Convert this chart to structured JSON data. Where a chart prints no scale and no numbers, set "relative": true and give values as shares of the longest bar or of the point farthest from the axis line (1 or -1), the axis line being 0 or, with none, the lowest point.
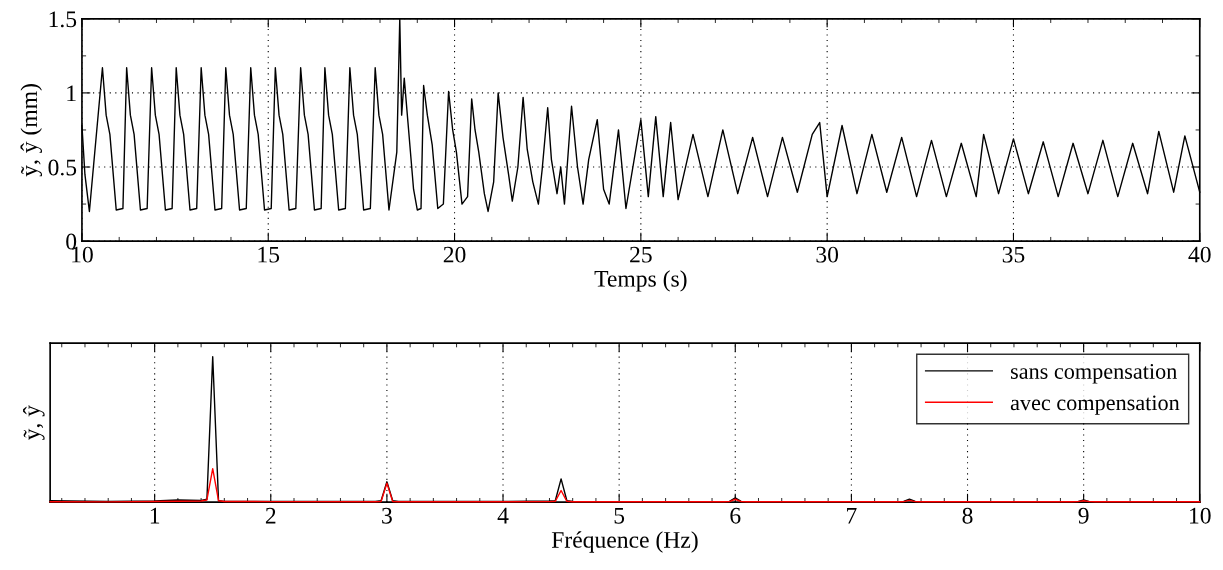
{
  "chart_data": [
    {
      "type": "line",
      "xlabel": "Temps (s)",
      "ylabel": "ỹ, ŷ (mm)",
      "xlim": [
        10,
        40
      ],
      "ylim": [
        0,
        1.5
      ],
      "grid": true,
      "legend": false,
      "xticks": [
        10,
        {
          "value": 11,
          "label": null
        },
        {
          "value": 12,
          "label": null
        },
        {
          "value": 13,
          "label": null
        },
        {
          "value": 14,
          "label": null
        },
        15,
        {
          "value": 16,
          "label": null
        },
        {
          "value": 17,
          "label": null
        },
        {
          "value": 18,
          "label": null
        },
        {
          "value": 19,
          "label": null
        },
        20,
        {
          "value": 21,
          "label": null
        },
        {
          "value": 22,
          "label": null
        },
        {
          "value": 23,
          "label": null
        },
        {
          "value": 24,
          "label": null
        },
        25,
        {
          "value": 26,
          "label": null
        },
        {
          "value": 27,
          "label": null
        },
        {
          "value": 28,
          "label": null
        },
        {
          "value": 29,
          "label": null
        },
        30,
        {
          "value": 31,
          "label": null
        },
        {
          "value": 32,
          "label": null
        },
        {
          "value": 33,
          "label": null
        },
        {
          "value": 34,
          "label": null
        },
        35,
        {
          "value": 36,
          "label": null
        },
        {
          "value": 37,
          "label": null
        },
        {
          "value": 38,
          "label": null
        },
        {
          "value": 39,
          "label": null
        },
        40
      ],
      "yticks": [
        0,
        {
          "value": 0.25,
          "label": null
        },
        0.5,
        {
          "value": 0.75,
          "label": null
        },
        1,
        {
          "value": 1.25,
          "label": null
        },
        1.5
      ],
      "series": [
        {
          "color": "#000000",
          "x": [
            10.0,
            10.08,
            10.2,
            10.55,
            10.65,
            10.75,
            10.92,
            11.1,
            11.2,
            11.3,
            11.4,
            11.57,
            11.75,
            11.87,
            11.97,
            12.07,
            12.24,
            12.42,
            12.53,
            12.63,
            12.73,
            12.9,
            13.08,
            13.2,
            13.3,
            13.4,
            13.57,
            13.75,
            13.86,
            13.96,
            14.06,
            14.23,
            14.41,
            14.53,
            14.63,
            14.73,
            14.9,
            15.08,
            15.19,
            15.29,
            15.39,
            15.56,
            15.74,
            15.87,
            15.97,
            16.07,
            16.24,
            16.42,
            16.52,
            16.62,
            16.72,
            16.89,
            17.07,
            17.19,
            17.29,
            17.39,
            17.56,
            17.74,
            17.87,
            17.97,
            18.07,
            18.24,
            18.45,
            18.53,
            18.58,
            18.65,
            18.75,
            18.9,
            19.0,
            19.1,
            19.17,
            19.27,
            19.4,
            19.55,
            19.7,
            19.84,
            19.95,
            20.05,
            20.2,
            20.35,
            20.46,
            20.55,
            20.65,
            20.8,
            20.9,
            21.05,
            21.17,
            21.3,
            21.45,
            21.55,
            21.7,
            21.84,
            21.95,
            22.1,
            22.25,
            22.35,
            22.5,
            22.6,
            22.75,
            22.85,
            22.95,
            23.14,
            23.3,
            23.45,
            23.6,
            23.83,
            24.0,
            24.15,
            24.4,
            24.6,
            25.0,
            25.2,
            25.4,
            25.6,
            25.8,
            26.0,
            26.4,
            26.8,
            27.2,
            27.6,
            28.0,
            28.4,
            28.8,
            29.2,
            29.6,
            29.8,
            30.0,
            30.4,
            30.8,
            31.2,
            31.6,
            32.0,
            32.4,
            32.8,
            33.2,
            33.6,
            34.0,
            34.2,
            34.6,
            35.0,
            35.4,
            35.8,
            36.2,
            36.6,
            37.0,
            37.4,
            37.8,
            38.2,
            38.6,
            38.9,
            39.3,
            39.6,
            40.0
          ],
          "values": [
            0.78,
            0.45,
            0.2,
            1.17,
            0.85,
            0.72,
            0.21,
            0.22,
            1.17,
            0.85,
            0.72,
            0.21,
            0.22,
            1.17,
            0.85,
            0.72,
            0.21,
            0.22,
            1.17,
            0.85,
            0.72,
            0.21,
            0.22,
            1.17,
            0.85,
            0.72,
            0.21,
            0.22,
            1.17,
            0.85,
            0.72,
            0.21,
            0.22,
            1.17,
            0.85,
            0.72,
            0.21,
            0.22,
            1.17,
            0.85,
            0.72,
            0.21,
            0.22,
            1.17,
            0.85,
            0.72,
            0.21,
            0.22,
            1.17,
            0.85,
            0.72,
            0.21,
            0.22,
            1.17,
            0.85,
            0.72,
            0.21,
            0.22,
            1.17,
            0.85,
            0.72,
            0.21,
            0.6,
            1.5,
            0.85,
            1.1,
            0.8,
            0.35,
            0.21,
            0.22,
            1.05,
            0.85,
            0.65,
            0.22,
            0.25,
            1.01,
            0.75,
            0.6,
            0.25,
            0.3,
            0.96,
            0.75,
            0.6,
            0.32,
            0.2,
            0.4,
            1.0,
            0.7,
            0.45,
            0.27,
            0.5,
            0.97,
            0.62,
            0.4,
            0.25,
            0.48,
            0.9,
            0.55,
            0.32,
            0.5,
            0.25,
            0.91,
            0.5,
            0.25,
            0.55,
            0.82,
            0.35,
            0.25,
            0.75,
            0.22,
            0.82,
            0.3,
            0.84,
            0.3,
            0.8,
            0.28,
            0.72,
            0.3,
            0.75,
            0.32,
            0.7,
            0.3,
            0.7,
            0.33,
            0.72,
            0.8,
            0.3,
            0.78,
            0.32,
            0.72,
            0.33,
            0.7,
            0.3,
            0.68,
            0.3,
            0.66,
            0.3,
            0.72,
            0.32,
            0.69,
            0.32,
            0.67,
            0.3,
            0.66,
            0.32,
            0.68,
            0.3,
            0.66,
            0.32,
            0.74,
            0.33,
            0.71,
            0.33
          ]
        }
      ]
    },
    {
      "type": "line",
      "xlabel": "Fréquence (Hz)",
      "ylabel": "ỹ, ŷ",
      "relative": true,
      "xlim": [
        0.1,
        10
      ],
      "grid": "x",
      "legend": "top right",
      "xticks": [
        {
          "value": 0.2,
          "label": null
        },
        {
          "value": 0.4,
          "label": null
        },
        {
          "value": 0.6,
          "label": null
        },
        {
          "value": 0.8,
          "label": null
        },
        1,
        {
          "value": 1.2,
          "label": null
        },
        {
          "value": 1.4,
          "label": null
        },
        {
          "value": 1.6,
          "label": null
        },
        {
          "value": 1.8,
          "label": null
        },
        2,
        {
          "value": 2.2,
          "label": null
        },
        {
          "value": 2.4,
          "label": null
        },
        {
          "value": 2.6,
          "label": null
        },
        {
          "value": 2.8,
          "label": null
        },
        3,
        {
          "value": 3.2,
          "label": null
        },
        {
          "value": 3.4,
          "label": null
        },
        {
          "value": 3.6,
          "label": null
        },
        {
          "value": 3.8,
          "label": null
        },
        4,
        {
          "value": 4.2,
          "label": null
        },
        {
          "value": 4.4,
          "label": null
        },
        {
          "value": 4.6,
          "label": null
        },
        {
          "value": 4.8,
          "label": null
        },
        5,
        {
          "value": 5.2,
          "label": null
        },
        {
          "value": 5.4,
          "label": null
        },
        {
          "value": 5.6,
          "label": null
        },
        {
          "value": 5.8,
          "label": null
        },
        6,
        {
          "value": 6.2,
          "label": null
        },
        {
          "value": 6.4,
          "label": null
        },
        {
          "value": 6.6,
          "label": null
        },
        {
          "value": 6.8,
          "label": null
        },
        7,
        {
          "value": 7.2,
          "label": null
        },
        {
          "value": 7.4,
          "label": null
        },
        {
          "value": 7.6,
          "label": null
        },
        {
          "value": 7.8,
          "label": null
        },
        8,
        {
          "value": 8.2,
          "label": null
        },
        {
          "value": 8.4,
          "label": null
        },
        {
          "value": 8.6,
          "label": null
        },
        {
          "value": 8.8,
          "label": null
        },
        9,
        {
          "value": 9.2,
          "label": null
        },
        {
          "value": 9.4,
          "label": null
        },
        {
          "value": 9.6,
          "label": null
        },
        {
          "value": 9.8,
          "label": null
        },
        10
      ],
      "x": [
        0.1,
        0.6,
        1.0,
        1.2,
        1.4,
        1.45,
        1.5,
        1.55,
        1.6,
        2.0,
        2.9,
        2.95,
        3.0,
        3.05,
        3.1,
        4.0,
        4.4,
        4.45,
        4.5,
        4.55,
        4.6,
        5.9,
        5.95,
        6.0,
        6.05,
        6.1,
        7.4,
        7.45,
        7.5,
        7.55,
        7.6,
        8.9,
        8.95,
        9.0,
        9.05,
        9.1,
        10
      ],
      "series": [
        {
          "name": "sans compensation",
          "color": "#000000",
          "values": [
            0.01,
            0.005,
            0.008,
            0.015,
            0.012,
            0.02,
            1,
            0.01,
            0.005,
            0.005,
            0.005,
            0.01,
            0.14,
            0.01,
            0.005,
            0.005,
            0.008,
            0.01,
            0.16,
            0.01,
            0.005,
            0.003,
            0.005,
            0.03,
            0.005,
            0.003,
            0.003,
            0.005,
            0.02,
            0.005,
            0.003,
            0.002,
            0.004,
            0.015,
            0.004,
            0.002,
            0.002
          ]
        },
        {
          "name": "avec compensation",
          "color": "#ff0000",
          "values": [
            0.003,
            0.002,
            0.005,
            0.006,
            0.008,
            0.015,
            0.23,
            0.01,
            0.005,
            0.004,
            0.003,
            0.005,
            0.13,
            0.005,
            0.003,
            0.003,
            0.004,
            0.006,
            0.08,
            0.006,
            0.003,
            0.003,
            0.004,
            0.02,
            0.004,
            0.003,
            0.003,
            0.004,
            0.012,
            0.004,
            0.003,
            0.003,
            0.004,
            0.01,
            0.004,
            0.003,
            0.003
          ]
        }
      ]
    }
  ]
}
